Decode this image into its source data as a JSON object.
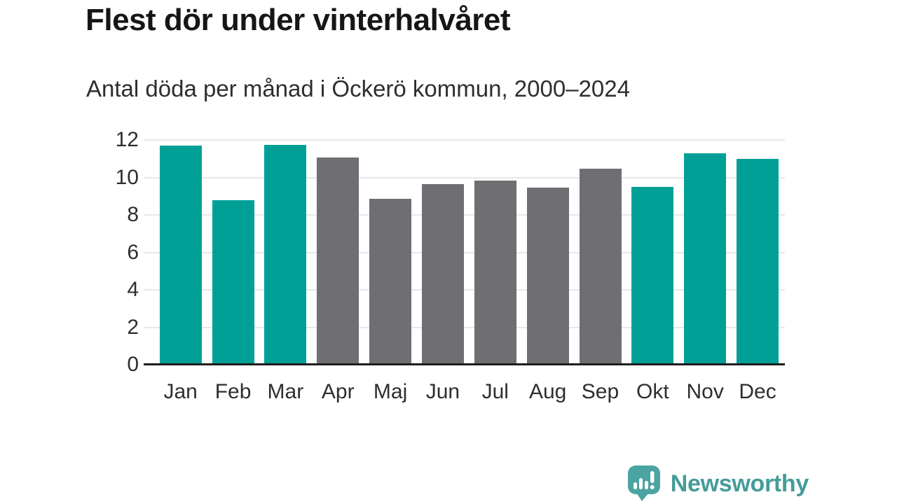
{
  "header": {
    "title": "Flest dör under vinterhalvåret",
    "subtitle": "Antal döda per månad i Öckerö kommun, 2000–2024"
  },
  "colors": {
    "teal": "#00a096",
    "gray": "#6e6e73",
    "logo_teal": "#4ba4a1",
    "brand_text": "#459c99",
    "axis": "#1d1d1d",
    "gridline": "#e7e7e7"
  },
  "chart_data": {
    "type": "bar",
    "title": "Flest dör under vinterhalvåret",
    "subtitle": "Antal döda per månad i Öckerö kommun, 2000–2024",
    "categories": [
      "Jan",
      "Feb",
      "Mar",
      "Apr",
      "Maj",
      "Jun",
      "Jul",
      "Aug",
      "Sep",
      "Okt",
      "Nov",
      "Dec"
    ],
    "values": [
      11.7,
      8.8,
      11.75,
      11.05,
      8.85,
      9.65,
      9.85,
      9.45,
      10.45,
      9.5,
      11.3,
      11.0
    ],
    "bar_colors": [
      "teal",
      "teal",
      "teal",
      "gray",
      "gray",
      "gray",
      "gray",
      "gray",
      "gray",
      "teal",
      "teal",
      "teal"
    ],
    "xlabel": "",
    "ylabel": "",
    "ylim": [
      0,
      12
    ],
    "yticks": [
      0,
      2,
      4,
      6,
      8,
      10,
      12
    ],
    "grid": true,
    "legend": "none"
  },
  "footer": {
    "brand": "Newsworthy",
    "logo_icon": "newsworthy-speech-bubble-chart-icon"
  }
}
